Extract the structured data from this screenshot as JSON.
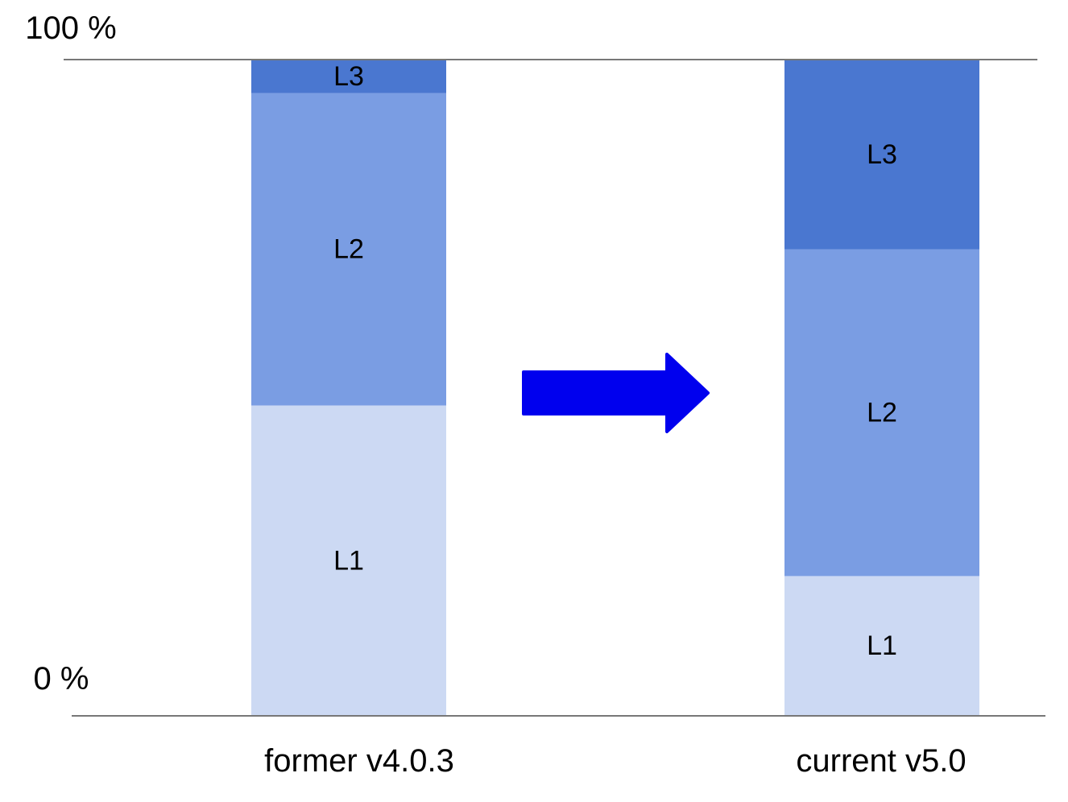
{
  "chart_data": {
    "type": "bar",
    "stacked": true,
    "normalized": true,
    "categories": [
      "former v4.0.3",
      "current v5.0"
    ],
    "series": [
      {
        "name": "L1",
        "values": [
          47.3,
          21.3
        ],
        "color": "#ccd9f3"
      },
      {
        "name": "L2",
        "values": [
          47.6,
          49.8
        ],
        "color": "#7a9de3"
      },
      {
        "name": "L3",
        "values": [
          5.1,
          28.9
        ],
        "color": "#4a77d0"
      }
    ],
    "ylim": [
      0,
      100
    ],
    "y_ticks": [
      {
        "value": 100,
        "label": "100 %"
      },
      {
        "value": 0,
        "label": "0 %"
      }
    ],
    "arrow": {
      "direction": "right",
      "color": "#0000ee"
    },
    "grid": false,
    "legend": "none"
  }
}
